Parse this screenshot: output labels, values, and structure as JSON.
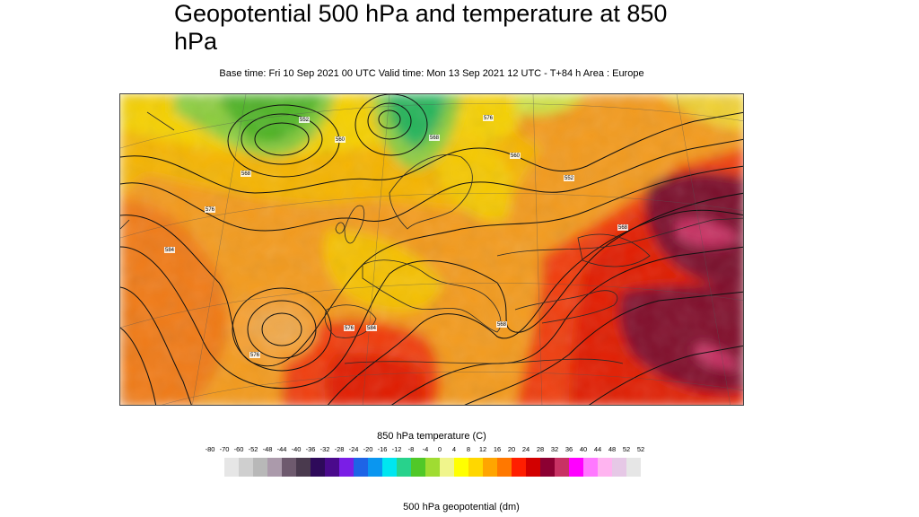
{
  "title": "Geopotential 500 hPa and temperature at 850 hPa",
  "subtitle": "Base time: Fri 10 Sep 2021 00 UTC Valid time: Mon 13 Sep 2021 12 UTC - T+84 h Area : Europe",
  "legend": {
    "title": "850 hPa temperature (C)",
    "tick_labels": [
      "-80",
      "-70",
      "-60",
      "-52",
      "-48",
      "-44",
      "-40",
      "-36",
      "-32",
      "-28",
      "-24",
      "-20",
      "-16",
      "-12",
      "-8",
      "-4",
      "0",
      "4",
      "8",
      "12",
      "16",
      "20",
      "24",
      "28",
      "32",
      "36",
      "40",
      "44",
      "48",
      "52",
      "52"
    ],
    "colors": [
      "#e6e6e6",
      "#cfcfcf",
      "#b8b8b8",
      "#ab9aab",
      "#6e5a6e",
      "#4a3a4e",
      "#2e0a5a",
      "#4a0a8c",
      "#7a1ee6",
      "#1e64e6",
      "#0a96f0",
      "#00e6f0",
      "#28d28c",
      "#50c828",
      "#a0dc32",
      "#f0f58c",
      "#ffff00",
      "#ffd700",
      "#ffa500",
      "#ff7800",
      "#ff1e00",
      "#d20000",
      "#8c0032",
      "#c83264",
      "#ff00ff",
      "#ff78ff",
      "#ffb4f0",
      "#e6c8e6",
      "#e6e6e6"
    ]
  },
  "footer_label": "500 hPa geopotential (dm)",
  "map": {
    "contour_labels": [
      "552",
      "560",
      "568",
      "576",
      "584",
      "576",
      "568",
      "560",
      "552",
      "568",
      "576",
      "584",
      "576",
      "568"
    ]
  }
}
